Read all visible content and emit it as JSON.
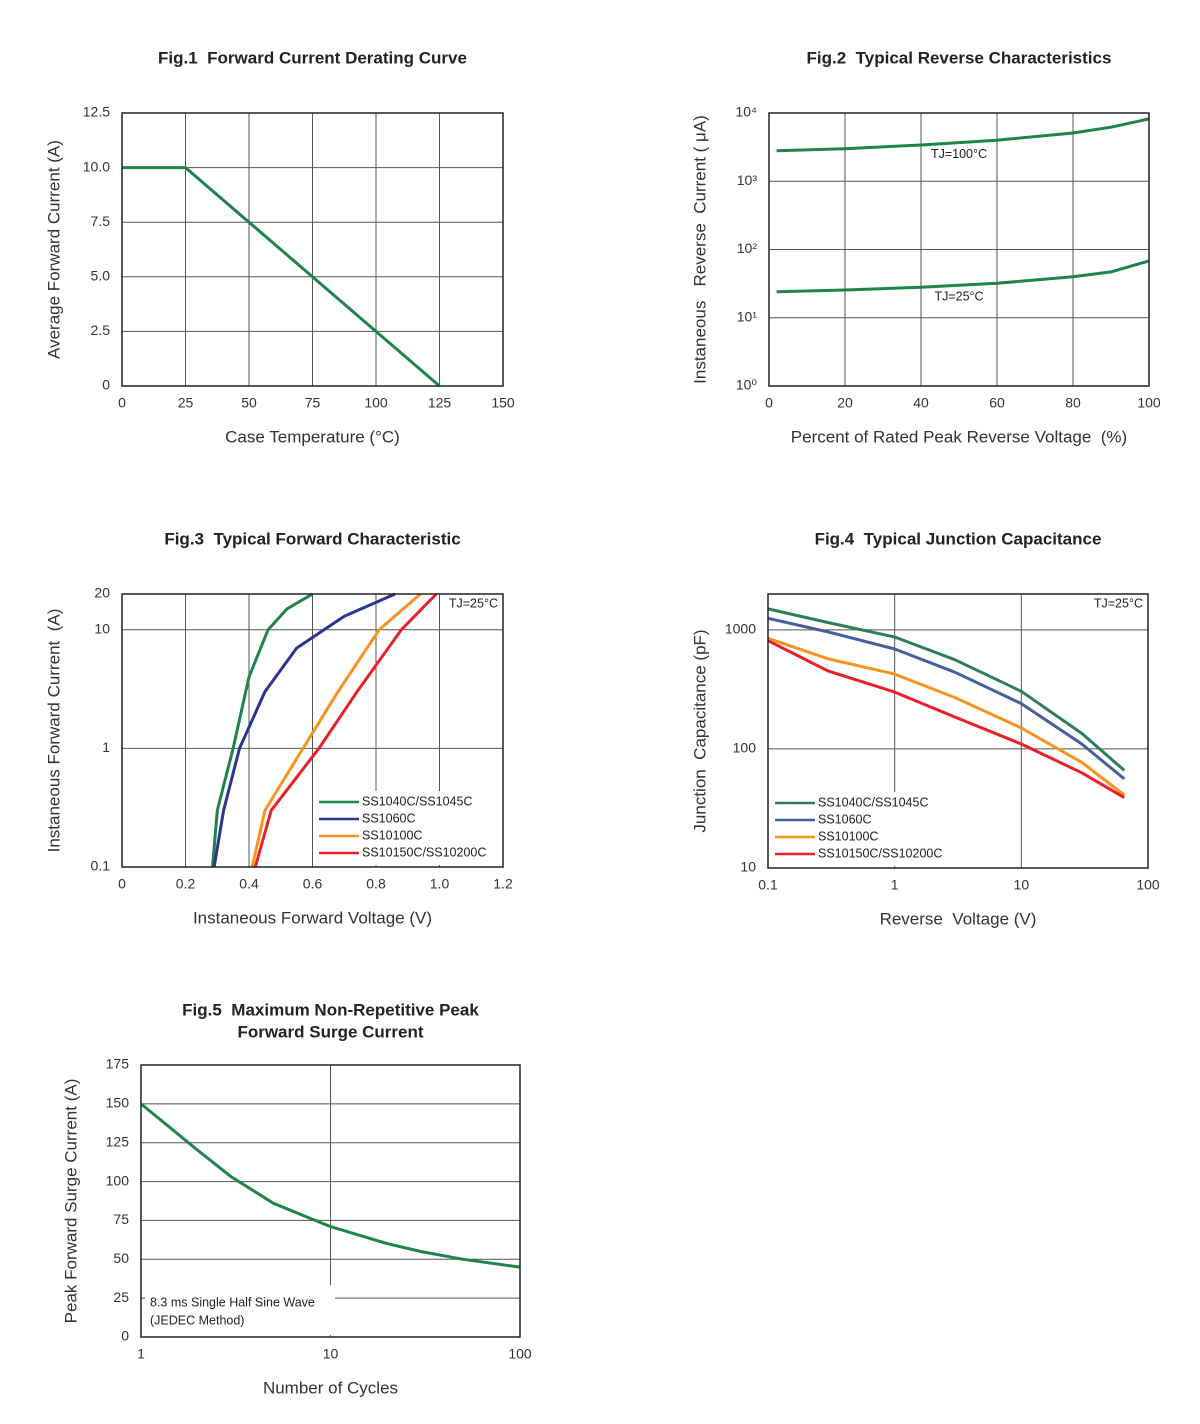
{
  "chart_data": [
    {
      "type": "line",
      "title": "Fig.1  Forward Current Derating Curve",
      "xlabel": "Case Temperature (°C)",
      "ylabel": "Average Forward Current (A)",
      "x": [
        0,
        25,
        125
      ],
      "series": [
        {
          "color": "#1e8449",
          "values": [
            10,
            10,
            0
          ]
        }
      ],
      "xlim": [
        0,
        150
      ],
      "xticks": [
        0,
        25,
        50,
        75,
        100,
        125,
        150
      ],
      "ylim": [
        0,
        12.5
      ],
      "yticks": [
        0,
        2.5,
        {
          "value": 5,
          "label": "5.0"
        },
        7.5,
        {
          "value": 10,
          "label": "10.0"
        },
        12.5
      ],
      "grid": true
    },
    {
      "type": "line",
      "title": "Fig.2  Typical Reverse Characteristics",
      "xlabel": "Percent of Rated Peak Reverse Voltage  (%)",
      "ylabel": "Instaneous   Reverse  Current ( μA)",
      "x": [
        2,
        20,
        40,
        60,
        80,
        90,
        100
      ],
      "series": [
        {
          "name": "TJ=100°C",
          "color": "#1e8449",
          "values": [
            2800,
            3000,
            3400,
            4000,
            5100,
            6200,
            8200
          ]
        },
        {
          "name": "TJ=25°C",
          "color": "#1e8449",
          "values": [
            24,
            25.5,
            28,
            32,
            40,
            47,
            68
          ]
        }
      ],
      "xlim": [
        0,
        100
      ],
      "xticks": [
        0,
        20,
        40,
        60,
        80,
        100
      ],
      "ylim": [
        1,
        10000
      ],
      "ylog": true,
      "yticks": [
        {
          "value": 1,
          "label": "10⁰"
        },
        {
          "value": 10,
          "label": "10¹"
        },
        {
          "value": 100,
          "label": "10²"
        },
        {
          "value": 1000,
          "label": "10³"
        },
        {
          "value": 10000,
          "label": "10⁴"
        }
      ],
      "grid": true,
      "legend": "inline"
    },
    {
      "type": "line",
      "title": "Fig.3  Typical Forward Characteristic",
      "xlabel": "Instaneous Forward Voltage (V)",
      "ylabel": "Instaneous Forward Current  (A)",
      "annotation": "TJ=25°C",
      "series": [
        {
          "name": "SS1040C/SS1045C",
          "color": "#1e8449",
          "x": [
            0.285,
            0.3,
            0.35,
            0.4,
            0.46,
            0.52,
            0.6
          ],
          "values": [
            0.1,
            0.3,
            1,
            4,
            10,
            15,
            20
          ]
        },
        {
          "name": "SS1060C",
          "color": "#2b3590",
          "x": [
            0.29,
            0.32,
            0.37,
            0.45,
            0.55,
            0.7,
            0.86
          ],
          "values": [
            0.1,
            0.3,
            1,
            3,
            7,
            13,
            20
          ]
        },
        {
          "name": "SS10100C",
          "color": "#f7931e",
          "x": [
            0.41,
            0.45,
            0.57,
            0.68,
            0.81,
            0.94
          ],
          "values": [
            0.1,
            0.3,
            1,
            3,
            10,
            20
          ]
        },
        {
          "name": "SS10150C/SS10200C",
          "color": "#e8202a",
          "x": [
            0.42,
            0.47,
            0.62,
            0.74,
            0.88,
            0.99
          ],
          "values": [
            0.1,
            0.3,
            1,
            3,
            10,
            20
          ]
        }
      ],
      "xlim": [
        0,
        1.2
      ],
      "xticks": [
        0,
        0.2,
        0.4,
        0.6,
        0.8,
        {
          "value": 1,
          "label": "1.0"
        },
        1.2
      ],
      "ylim": [
        0.1,
        20
      ],
      "ylog": true,
      "yticks": [
        0.1,
        1,
        10,
        20
      ],
      "grid": true,
      "legend": "lower right"
    },
    {
      "type": "line",
      "title": "Fig.4  Typical Junction Capacitance",
      "xlabel": "Reverse  Voltage (V)",
      "ylabel": "Junction  Capacitance (pF)",
      "annotation": "TJ=25°C",
      "x": [
        0.1,
        0.3,
        1,
        3,
        10,
        30,
        65
      ],
      "series": [
        {
          "name": "SS1040C/SS1045C",
          "color": "#2e7d5b",
          "values": [
            1500,
            1150,
            870,
            560,
            305,
            135,
            66
          ]
        },
        {
          "name": "SS1060C",
          "color": "#44609e",
          "values": [
            1250,
            960,
            690,
            440,
            240,
            110,
            56
          ]
        },
        {
          "name": "SS10100C",
          "color": "#f7931e",
          "values": [
            850,
            570,
            425,
            270,
            150,
            77,
            41
          ]
        },
        {
          "name": "SS10150C/SS10200C",
          "color": "#e8202a",
          "values": [
            810,
            450,
            300,
            185,
            110,
            63,
            39
          ]
        }
      ],
      "xlim": [
        0.1,
        100
      ],
      "xlog": true,
      "xticks": [
        0.1,
        1,
        10,
        100
      ],
      "ylim": [
        10,
        2000
      ],
      "ylog": true,
      "yticks": [
        10,
        100,
        1000
      ],
      "grid": true,
      "legend": "lower left"
    },
    {
      "type": "line",
      "title": [
        "Fig.5  Maximum Non-Repetitive Peak",
        "Forward Surge Current"
      ],
      "xlabel": "Number of Cycles",
      "ylabel": "Peak Forward Surge Current (A)",
      "annotation": [
        "8.3 ms Single Half Sine Wave",
        "(JEDEC Method)"
      ],
      "x": [
        1,
        2,
        3,
        5,
        10,
        20,
        30,
        50,
        100
      ],
      "series": [
        {
          "color": "#1e8449",
          "values": [
            150,
            120,
            103,
            86,
            71,
            60,
            55,
            50,
            45
          ]
        }
      ],
      "xlim": [
        1,
        100
      ],
      "xlog": true,
      "xticks": [
        1,
        10,
        100
      ],
      "ylim": [
        0,
        175
      ],
      "yticks": [
        0,
        25,
        50,
        75,
        100,
        125,
        150,
        175
      ],
      "grid": true
    }
  ]
}
